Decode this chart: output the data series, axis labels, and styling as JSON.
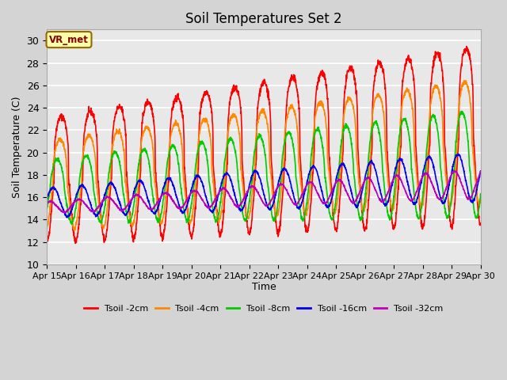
{
  "title": "Soil Temperatures Set 2",
  "xlabel": "Time",
  "ylabel": "Soil Temperature (C)",
  "ylim": [
    10,
    31
  ],
  "yticks": [
    10,
    12,
    14,
    16,
    18,
    20,
    22,
    24,
    26,
    28,
    30
  ],
  "fig_bg_color": "#d4d4d4",
  "plot_bg_color": "#e8e8e8",
  "annotation_text": "VR_met",
  "annotation_bg": "#ffffaa",
  "annotation_edge": "#996600",
  "annotation_text_color": "#880000",
  "xtick_labels": [
    "Apr 15",
    "Apr 16",
    "Apr 17",
    "Apr 18",
    "Apr 19",
    "Apr 20",
    "Apr 21",
    "Apr 22",
    "Apr 23",
    "Apr 24",
    "Apr 25",
    "Apr 26",
    "Apr 27",
    "Apr 28",
    "Apr 29",
    "Apr 30"
  ],
  "series": [
    {
      "label": "Tsoil -2cm",
      "color": "#ff0000",
      "lw": 1.2
    },
    {
      "label": "Tsoil -4cm",
      "color": "#ff8800",
      "lw": 1.2
    },
    {
      "label": "Tsoil -8cm",
      "color": "#00cc00",
      "lw": 1.2
    },
    {
      "label": "Tsoil -16cm",
      "color": "#0000ee",
      "lw": 1.2
    },
    {
      "label": "Tsoil -32cm",
      "color": "#bb00bb",
      "lw": 1.2
    }
  ]
}
